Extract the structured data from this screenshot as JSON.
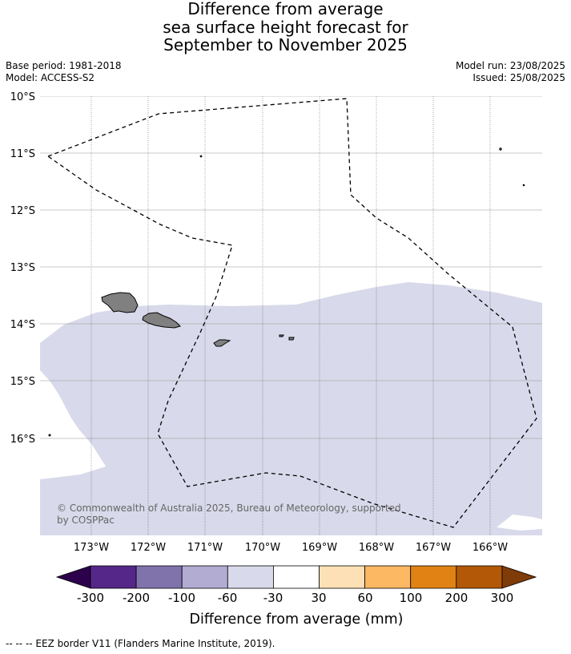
{
  "title": {
    "line1": "Difference from average",
    "line2": "sea surface height forecast for",
    "line3": "September to November 2025"
  },
  "meta": {
    "base_period": "Base period: 1981-2018",
    "model": "Model: ACCESS-S2",
    "model_run": "Model run: 23/08/2025",
    "issued": "Issued: 25/08/2025"
  },
  "map": {
    "ocean_color": "#ffffff",
    "shaded_color": "#d8d9ea",
    "land_color": "#808080",
    "eez_color": "#000000",
    "lat_labels": [
      "10°S",
      "11°S",
      "12°S",
      "13°S",
      "14°S",
      "15°S",
      "16°S"
    ],
    "lon_labels": [
      "173°W",
      "172°W",
      "171°W",
      "170°W",
      "169°W",
      "168°W",
      "167°W",
      "166°W"
    ],
    "copyright_line1": "© Commonwealth of Australia 2025, Bureau of Meteorology, supported",
    "copyright_line2": "by COSPPac"
  },
  "colorbar": {
    "title": "Difference from average (mm)",
    "colors": [
      "#2d004b",
      "#542788",
      "#8073ac",
      "#b2abd2",
      "#d8daeb",
      "#ffffff",
      "#fee0b6",
      "#fdb863",
      "#e08214",
      "#b35806",
      "#7f3b08"
    ],
    "labels": [
      "-300",
      "-200",
      "-100",
      "-60",
      "-30",
      "30",
      "60",
      "100",
      "200",
      "300"
    ]
  },
  "footnote": "--  --  -- EEZ border V11 (Flanders Marine Institute, 2019)."
}
